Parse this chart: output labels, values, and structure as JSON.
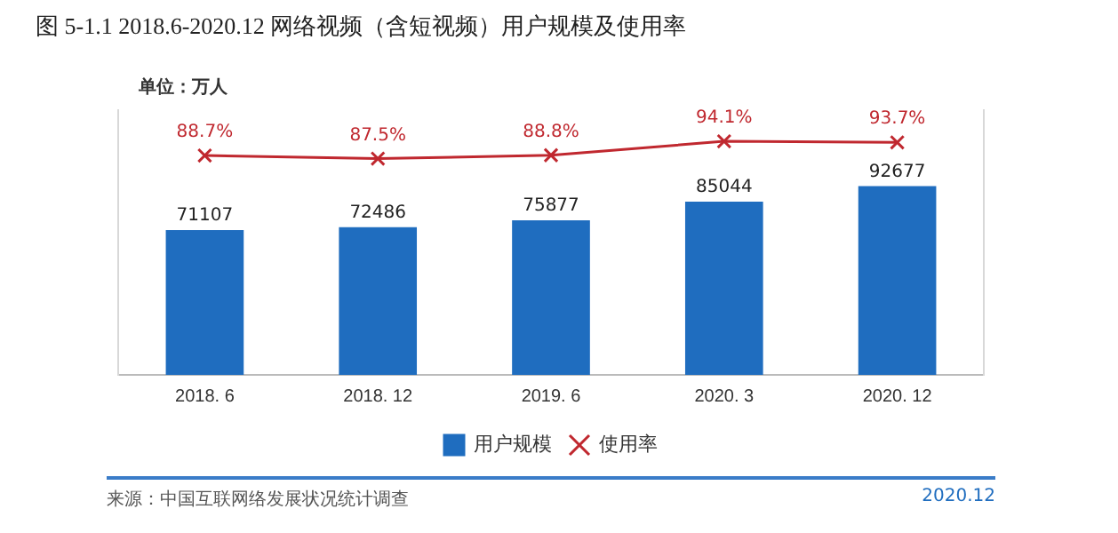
{
  "chart_data": {
    "type": "bar",
    "title": "图 5-1.1 2018.6-2020.12 网络视频（含短视频）用户规模及使用率",
    "annotations": [
      "单位：万人",
      "来源：中国互联网络发展状况统计调查",
      "2020.12"
    ],
    "categories": [
      "2018. 6",
      "2018. 12",
      "2019. 6",
      "2020. 3",
      "2020. 12"
    ],
    "series": [
      {
        "name": "用户规模",
        "color": "#1f6dbf",
        "values": [
          71107,
          72486,
          75877,
          85044,
          92677
        ]
      },
      {
        "name": "使用率",
        "type": "line",
        "axis": "y2",
        "color": "#c0282f",
        "values": [
          88.7,
          87.5,
          88.8,
          94.1,
          93.7
        ],
        "value_labels": [
          "88.7%",
          "87.5%",
          "88.8%",
          "94.1%",
          "93.7%"
        ],
        "marker": "cross",
        "line_style": "solid"
      }
    ],
    "ylim": [
      0,
      130000
    ],
    "y2lim": [
      5,
      106
    ],
    "tick_labels": "x",
    "data_labels": true,
    "grid": false,
    "legend": "bottom"
  }
}
